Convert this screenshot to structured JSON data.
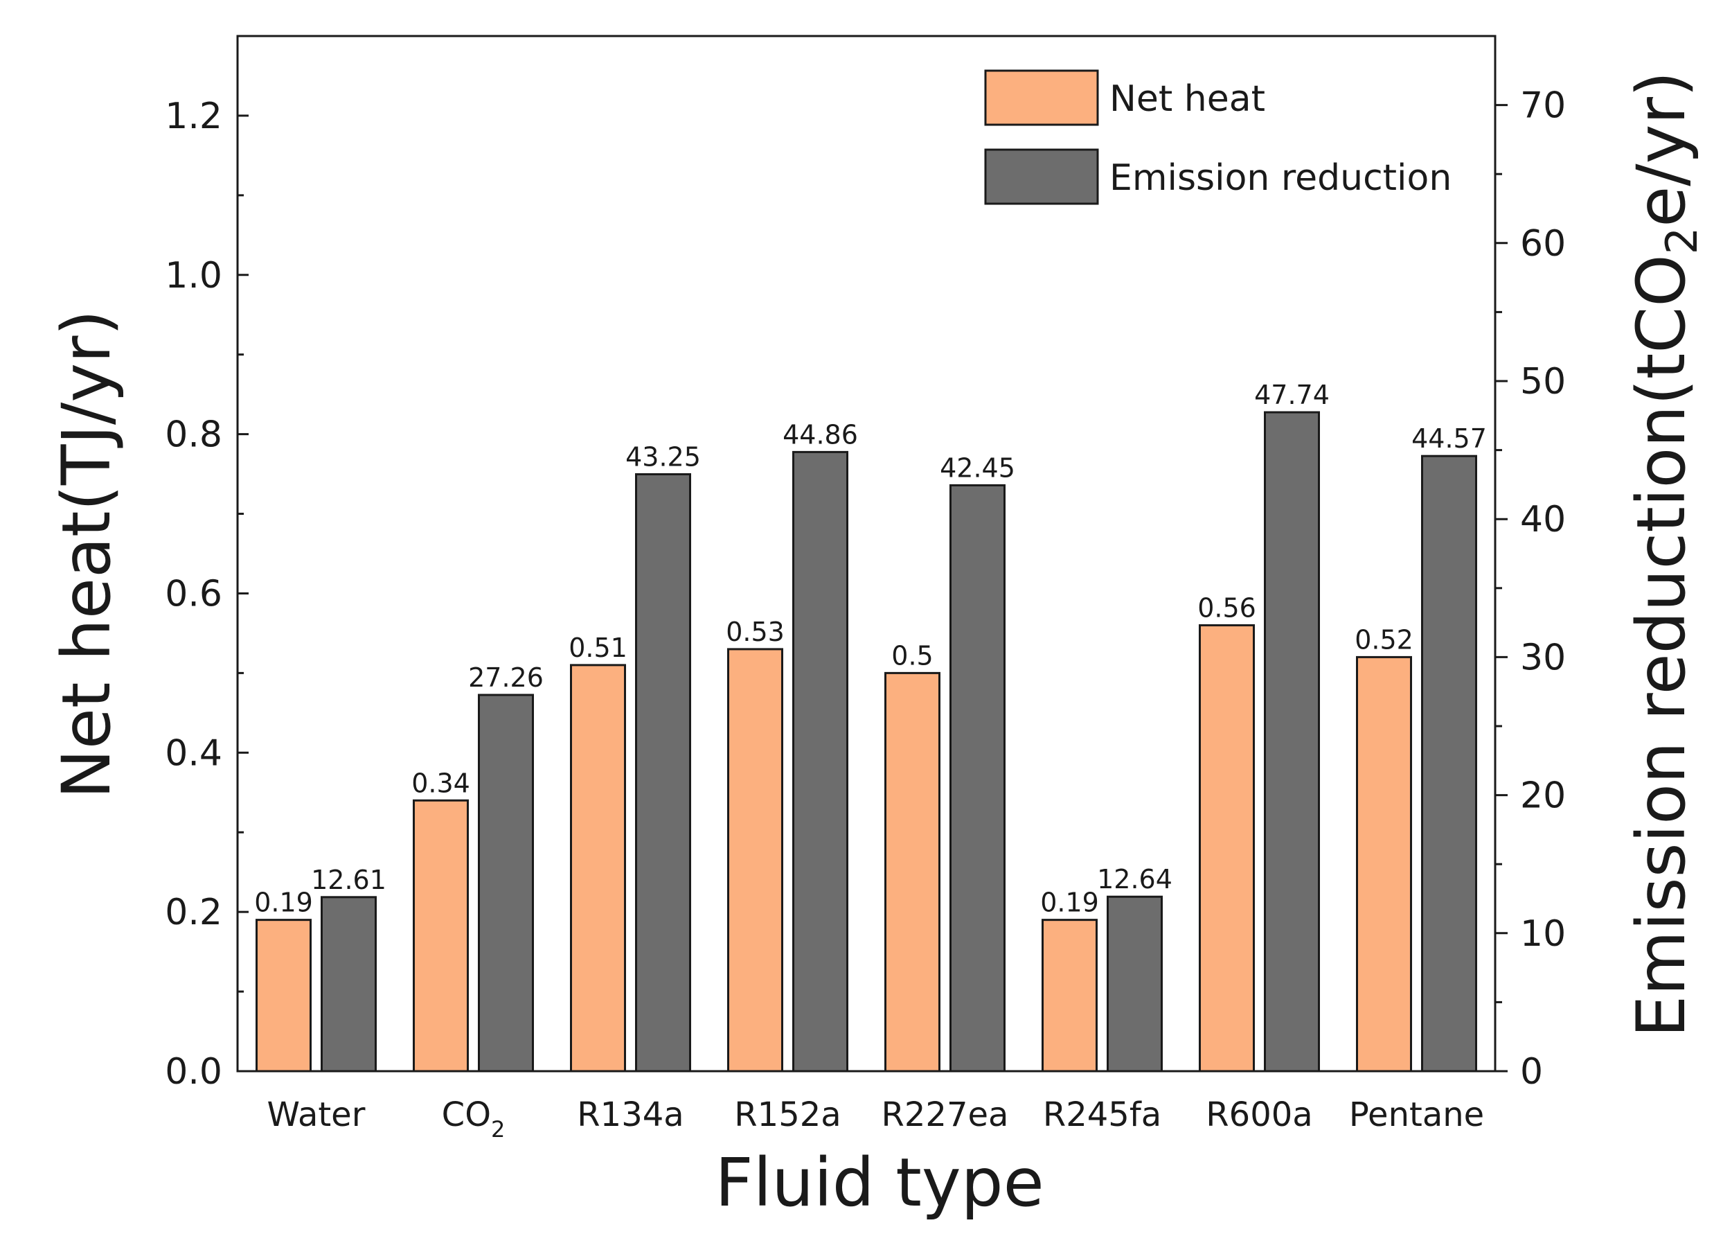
{
  "chart_data": {
    "type": "bar",
    "title": "",
    "xlabel": "Fluid type",
    "categories": [
      "Water",
      "CO2",
      "R134a",
      "R152a",
      "R227ea",
      "R245fa",
      "R600a",
      "Pentane"
    ],
    "category_subscripts": [
      "",
      "2",
      "",
      "",
      "",
      "",
      "",
      ""
    ],
    "ylabel_left": "Net heat(TJ/yr)",
    "ylabel_right": "Emission reduction(tCO2e/yr)",
    "ylabel_right_parts": [
      "Emission reduction(tCO",
      "2",
      "e/yr)"
    ],
    "ylim_left": [
      0,
      1.3
    ],
    "ylim_right": [
      0,
      75
    ],
    "yticks_left": [
      "0.0",
      "0.2",
      "0.4",
      "0.6",
      "0.8",
      "1.0",
      "1.2"
    ],
    "yticks_right": [
      "0",
      "10",
      "20",
      "30",
      "40",
      "50",
      "60",
      "70"
    ],
    "grid": false,
    "legend_position": "top-right",
    "series": [
      {
        "name": "Net heat",
        "axis": "left",
        "color": "#FCB07F",
        "values": [
          0.19,
          0.34,
          0.51,
          0.53,
          0.5,
          0.19,
          0.56,
          0.52
        ],
        "labels": [
          "0.19",
          "0.34",
          "0.51",
          "0.53",
          "0.5",
          "0.19",
          "0.56",
          "0.52"
        ]
      },
      {
        "name": "Emission reduction",
        "axis": "right",
        "color": "#6D6D6D",
        "values": [
          12.61,
          27.26,
          43.25,
          44.86,
          42.45,
          12.64,
          47.74,
          44.57
        ],
        "labels": [
          "12.61",
          "27.26",
          "43.25",
          "44.86",
          "42.45",
          "12.64",
          "47.74",
          "44.57"
        ]
      }
    ]
  }
}
